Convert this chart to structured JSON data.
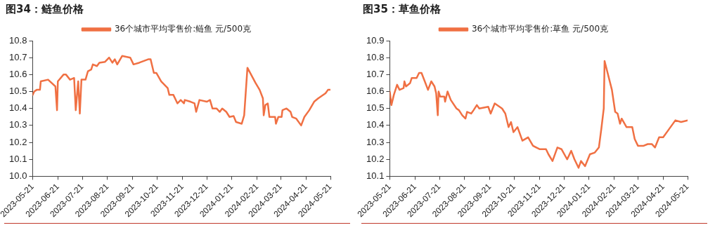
{
  "chart_data": [
    {
      "type": "line",
      "title": "图34：鲢鱼价格",
      "legend": "top",
      "grid": false,
      "marker": "none",
      "line_style": "solid",
      "ylim": [
        10.0,
        10.8
      ],
      "yticks": [
        {
          "value": 10.0,
          "label": "10.0"
        },
        {
          "value": 10.1,
          "label": "10.1"
        },
        {
          "value": 10.2,
          "label": "10.2"
        },
        {
          "value": 10.3,
          "label": "10.3"
        },
        {
          "value": 10.4,
          "label": "10.4"
        },
        {
          "value": 10.5,
          "label": "10.5"
        },
        {
          "value": 10.6,
          "label": "10.6"
        },
        {
          "value": 10.7,
          "label": "10.7"
        },
        {
          "value": 10.8,
          "label": "10.8"
        }
      ],
      "xlim": [
        "2023-05-21",
        "2024-05-21"
      ],
      "xticks": [
        "2023-05-21",
        "2023-06-21",
        "2023-07-21",
        "2023-08-21",
        "2023-09-21",
        "2023-10-21",
        "2023-11-21",
        "2023-12-21",
        "2024-01-21",
        "2024-02-21",
        "2024-03-21",
        "2024-04-21",
        "2024-05-21"
      ],
      "x": [
        "2023-05-21",
        "2023-05-23",
        "2023-05-26",
        "2023-05-30",
        "2023-05-31",
        "2023-06-09",
        "2023-06-18",
        "2023-06-20",
        "2023-06-21",
        "2023-06-28",
        "2023-07-01",
        "2023-07-06",
        "2023-07-11",
        "2023-07-13",
        "2023-07-16",
        "2023-07-18",
        "2023-07-20",
        "2023-07-25",
        "2023-07-28",
        "2023-08-01",
        "2023-08-03",
        "2023-08-08",
        "2023-08-11",
        "2023-08-18",
        "2023-08-23",
        "2023-08-27",
        "2023-08-30",
        "2023-09-02",
        "2023-09-08",
        "2023-09-18",
        "2023-09-22",
        "2023-09-29",
        "2023-10-10",
        "2023-10-13",
        "2023-10-17",
        "2023-10-20",
        "2023-10-26",
        "2023-11-03",
        "2023-11-05",
        "2023-11-10",
        "2023-11-15",
        "2023-11-19",
        "2023-11-23",
        "2023-11-24",
        "2023-12-01",
        "2023-12-06",
        "2023-12-08",
        "2023-12-12",
        "2023-12-21",
        "2023-12-25",
        "2023-12-28",
        "2024-01-02",
        "2024-01-06",
        "2024-01-09",
        "2024-01-14",
        "2024-01-18",
        "2024-01-23",
        "2024-01-26",
        "2024-02-02",
        "2024-02-05",
        "2024-02-09",
        "2024-02-19",
        "2024-02-24",
        "2024-02-28",
        "2024-02-29",
        "2024-03-02",
        "2024-03-05",
        "2024-03-07",
        "2024-03-14",
        "2024-03-15",
        "2024-03-18",
        "2024-03-22",
        "2024-03-23",
        "2024-03-28",
        "2024-04-02",
        "2024-04-04",
        "2024-04-09",
        "2024-04-15",
        "2024-04-19",
        "2024-04-25",
        "2024-05-01",
        "2024-05-06",
        "2024-05-15",
        "2024-05-18",
        "2024-05-21"
      ],
      "series": [
        {
          "name": "36个城市平均零售价:鲢鱼 元/500克",
          "color": "#f07043",
          "values": [
            10.48,
            10.5,
            10.51,
            10.51,
            10.56,
            10.57,
            10.53,
            10.39,
            10.56,
            10.6,
            10.6,
            10.57,
            10.58,
            10.39,
            10.56,
            10.37,
            10.57,
            10.57,
            10.62,
            10.63,
            10.66,
            10.65,
            10.67,
            10.675,
            10.7,
            10.67,
            10.69,
            10.66,
            10.71,
            10.7,
            10.66,
            10.67,
            10.69,
            10.69,
            10.61,
            10.61,
            10.56,
            10.52,
            10.48,
            10.48,
            10.43,
            10.45,
            10.43,
            10.45,
            10.44,
            10.43,
            10.38,
            10.45,
            10.44,
            10.45,
            10.4,
            10.4,
            10.38,
            10.4,
            10.38,
            10.35,
            10.355,
            10.32,
            10.31,
            10.36,
            10.64,
            10.55,
            10.51,
            10.46,
            10.36,
            10.42,
            10.43,
            10.35,
            10.35,
            10.31,
            10.35,
            10.35,
            10.39,
            10.4,
            10.38,
            10.35,
            10.34,
            10.3,
            10.35,
            10.39,
            10.44,
            10.46,
            10.49,
            10.51,
            10.51
          ]
        }
      ]
    },
    {
      "type": "line",
      "title": "图35：草鱼价格",
      "legend": "top",
      "grid": false,
      "marker": "none",
      "line_style": "solid",
      "ylim": [
        10.1,
        10.9
      ],
      "yticks": [
        10.1,
        10.2,
        10.3,
        10.4,
        10.5,
        10.6,
        10.7,
        10.8,
        10.9
      ],
      "xlim": [
        "2023-05-21",
        "2024-05-21"
      ],
      "xticks": [
        "2023-05-21",
        "2023-06-21",
        "2023-07-21",
        "2023-08-21",
        "2023-09-21",
        "2023-10-21",
        "2023-11-21",
        "2023-12-21",
        "2024-01-21",
        "2024-02-21",
        "2024-03-21",
        "2024-04-21",
        "2024-05-21"
      ],
      "x": [
        "2023-05-21",
        "2023-05-23",
        "2023-05-26",
        "2023-05-30",
        "2023-06-02",
        "2023-06-07",
        "2023-06-08",
        "2023-06-10",
        "2023-06-15",
        "2023-06-17",
        "2023-06-23",
        "2023-06-26",
        "2023-06-29",
        "2023-07-03",
        "2023-07-07",
        "2023-07-11",
        "2023-07-15",
        "2023-07-17",
        "2023-07-19",
        "2023-07-20",
        "2023-07-22",
        "2023-07-27",
        "2023-07-28",
        "2023-07-31",
        "2023-08-04",
        "2023-08-11",
        "2023-08-14",
        "2023-08-18",
        "2023-08-22",
        "2023-08-24",
        "2023-08-29",
        "2023-09-01",
        "2023-09-05",
        "2023-09-08",
        "2023-09-19",
        "2023-09-22",
        "2023-09-27",
        "2023-10-06",
        "2023-10-10",
        "2023-10-14",
        "2023-10-17",
        "2023-10-20",
        "2023-10-25",
        "2023-10-31",
        "2023-11-07",
        "2023-11-13",
        "2023-11-21",
        "2023-11-29",
        "2023-12-02",
        "2023-12-07",
        "2023-12-13",
        "2023-12-18",
        "2023-12-25",
        "2023-12-30",
        "2024-01-03",
        "2024-01-08",
        "2024-01-11",
        "2024-01-16",
        "2024-01-22",
        "2024-01-28",
        "2024-02-02",
        "2024-02-05",
        "2024-02-08",
        "2024-02-09",
        "2024-02-18",
        "2024-02-22",
        "2024-02-25",
        "2024-02-28",
        "2024-03-01",
        "2024-03-07",
        "2024-03-14",
        "2024-03-17",
        "2024-03-21",
        "2024-03-28",
        "2024-04-02",
        "2024-04-07",
        "2024-04-11",
        "2024-04-16",
        "2024-04-21",
        "2024-04-27",
        "2024-05-06",
        "2024-05-13",
        "2024-05-21"
      ],
      "series": [
        {
          "name": "36个城市平均零售价:草鱼 元/500克",
          "color": "#f07043",
          "values": [
            10.6,
            10.52,
            10.58,
            10.64,
            10.61,
            10.62,
            10.66,
            10.63,
            10.65,
            10.68,
            10.68,
            10.71,
            10.71,
            10.66,
            10.61,
            10.66,
            10.63,
            10.59,
            10.46,
            10.6,
            10.57,
            10.57,
            10.54,
            10.6,
            10.55,
            10.5,
            10.49,
            10.46,
            10.44,
            10.48,
            10.47,
            10.49,
            10.52,
            10.5,
            10.51,
            10.47,
            10.53,
            10.5,
            10.47,
            10.39,
            10.42,
            10.36,
            10.39,
            10.31,
            10.33,
            10.28,
            10.26,
            10.26,
            10.23,
            10.19,
            10.27,
            10.26,
            10.2,
            10.25,
            10.2,
            10.15,
            10.19,
            10.16,
            10.23,
            10.24,
            10.27,
            10.38,
            10.5,
            10.78,
            10.61,
            10.48,
            10.47,
            10.41,
            10.44,
            10.39,
            10.39,
            10.32,
            10.28,
            10.28,
            10.29,
            10.29,
            10.27,
            10.33,
            10.33,
            10.37,
            10.43,
            10.42,
            10.43
          ]
        }
      ]
    }
  ]
}
